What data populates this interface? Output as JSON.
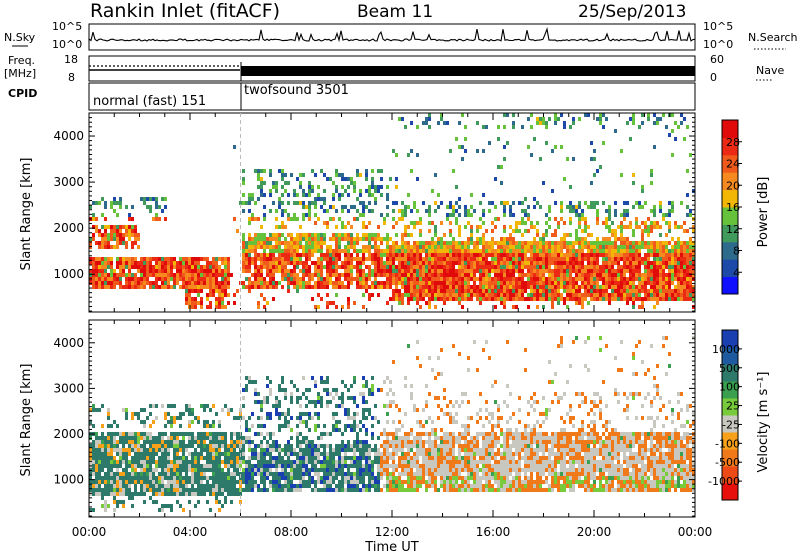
{
  "header": {
    "title": "Rankin Inlet (fitACF)",
    "beam": "Beam 11",
    "date": "25/Sep/2013"
  },
  "panels": {
    "nsky_label": "N.Sky",
    "nsearch_label": "N.Search",
    "freq_label": "Freq.",
    "freq_unit": "[MHz]",
    "nave_label": "Nave",
    "cpid_label": "CPID",
    "nsky_ticks": [
      "10^5",
      "10^0"
    ],
    "nsearch_ticks": [
      "10^5",
      "10^0"
    ],
    "freq_ticks": [
      "18",
      "8"
    ],
    "nave_ticks": [
      "60",
      "0"
    ],
    "cpid_modes": [
      {
        "label": "normal (fast) 151",
        "start_hour": 0,
        "end_hour": 6
      },
      {
        "label": "twofsound 3501",
        "start_hour": 6,
        "end_hour": 24
      }
    ]
  },
  "chart_data": [
    {
      "type": "heatmap",
      "title": "",
      "xlabel": "Time UT",
      "ylabel": "Slant Range [km]",
      "x_ticks": [
        "00:00",
        "04:00",
        "08:00",
        "12:00",
        "16:00",
        "20:00",
        "00:00"
      ],
      "xlim_hours": [
        0,
        24
      ],
      "y_ticks": [
        1000,
        2000,
        3000,
        4000
      ],
      "ylim": [
        180,
        4500
      ],
      "colorbar": {
        "label": "Power [dB]",
        "ticks": [
          "4",
          "8",
          "12",
          "16",
          "20",
          "24",
          "28"
        ],
        "colors": [
          "#1010ff",
          "#1d4aa8",
          "#2d6a8c",
          "#3f9a5c",
          "#66c23a",
          "#f2b705",
          "#f78a1e",
          "#f05a1a",
          "#ec2a14",
          "#e00a0a"
        ]
      },
      "echo_regions": [
        {
          "t0": 0.0,
          "t1": 5.5,
          "r0": 600,
          "r1": 1400,
          "level": "24-28 dB"
        },
        {
          "t0": 0.0,
          "t1": 1.5,
          "r0": 1600,
          "r1": 2100,
          "level": "16-24 dB"
        },
        {
          "t0": 6.0,
          "t1": 12.0,
          "r0": 700,
          "r1": 1900,
          "level": "20-28 dB"
        },
        {
          "t0": 12.0,
          "t1": 24.0,
          "r0": 500,
          "r1": 1800,
          "level": "24-28 dB"
        }
      ]
    },
    {
      "type": "heatmap",
      "title": "",
      "xlabel": "Time UT",
      "ylabel": "Slant Range [km]",
      "x_ticks": [
        "00:00",
        "04:00",
        "08:00",
        "12:00",
        "16:00",
        "20:00",
        "00:00"
      ],
      "xlim_hours": [
        0,
        24
      ],
      "y_ticks": [
        1000,
        2000,
        3000,
        4000
      ],
      "ylim": [
        180,
        4500
      ],
      "colorbar": {
        "label": "Velocity [m s⁻¹]",
        "ticks": [
          "1000",
          "500",
          "100",
          "25",
          "-25",
          "-100",
          "-500",
          "-1000"
        ],
        "colors": [
          "#1a3fb0",
          "#1e5aa0",
          "#2d7a6a",
          "#3aa050",
          "#78cc3c",
          "#c8c8c0",
          "#f7a01a",
          "#f07a1a",
          "#ee4a16",
          "#e8100c"
        ]
      },
      "echo_regions": [
        {
          "t0": 0.0,
          "t1": 6.0,
          "r0": 700,
          "r1": 2100,
          "level": "100-500 m/s"
        },
        {
          "t0": 6.0,
          "t1": 11.5,
          "r0": 800,
          "r1": 1700,
          "level": "100-1000 m/s"
        },
        {
          "t0": 11.5,
          "t1": 24.0,
          "r0": 900,
          "r1": 1800,
          "level": "-100 to -500 m/s"
        },
        {
          "t0": 13.0,
          "t1": 24.0,
          "r0": 1100,
          "r1": 1600,
          "level": "-25 to 25 m/s"
        }
      ]
    }
  ]
}
